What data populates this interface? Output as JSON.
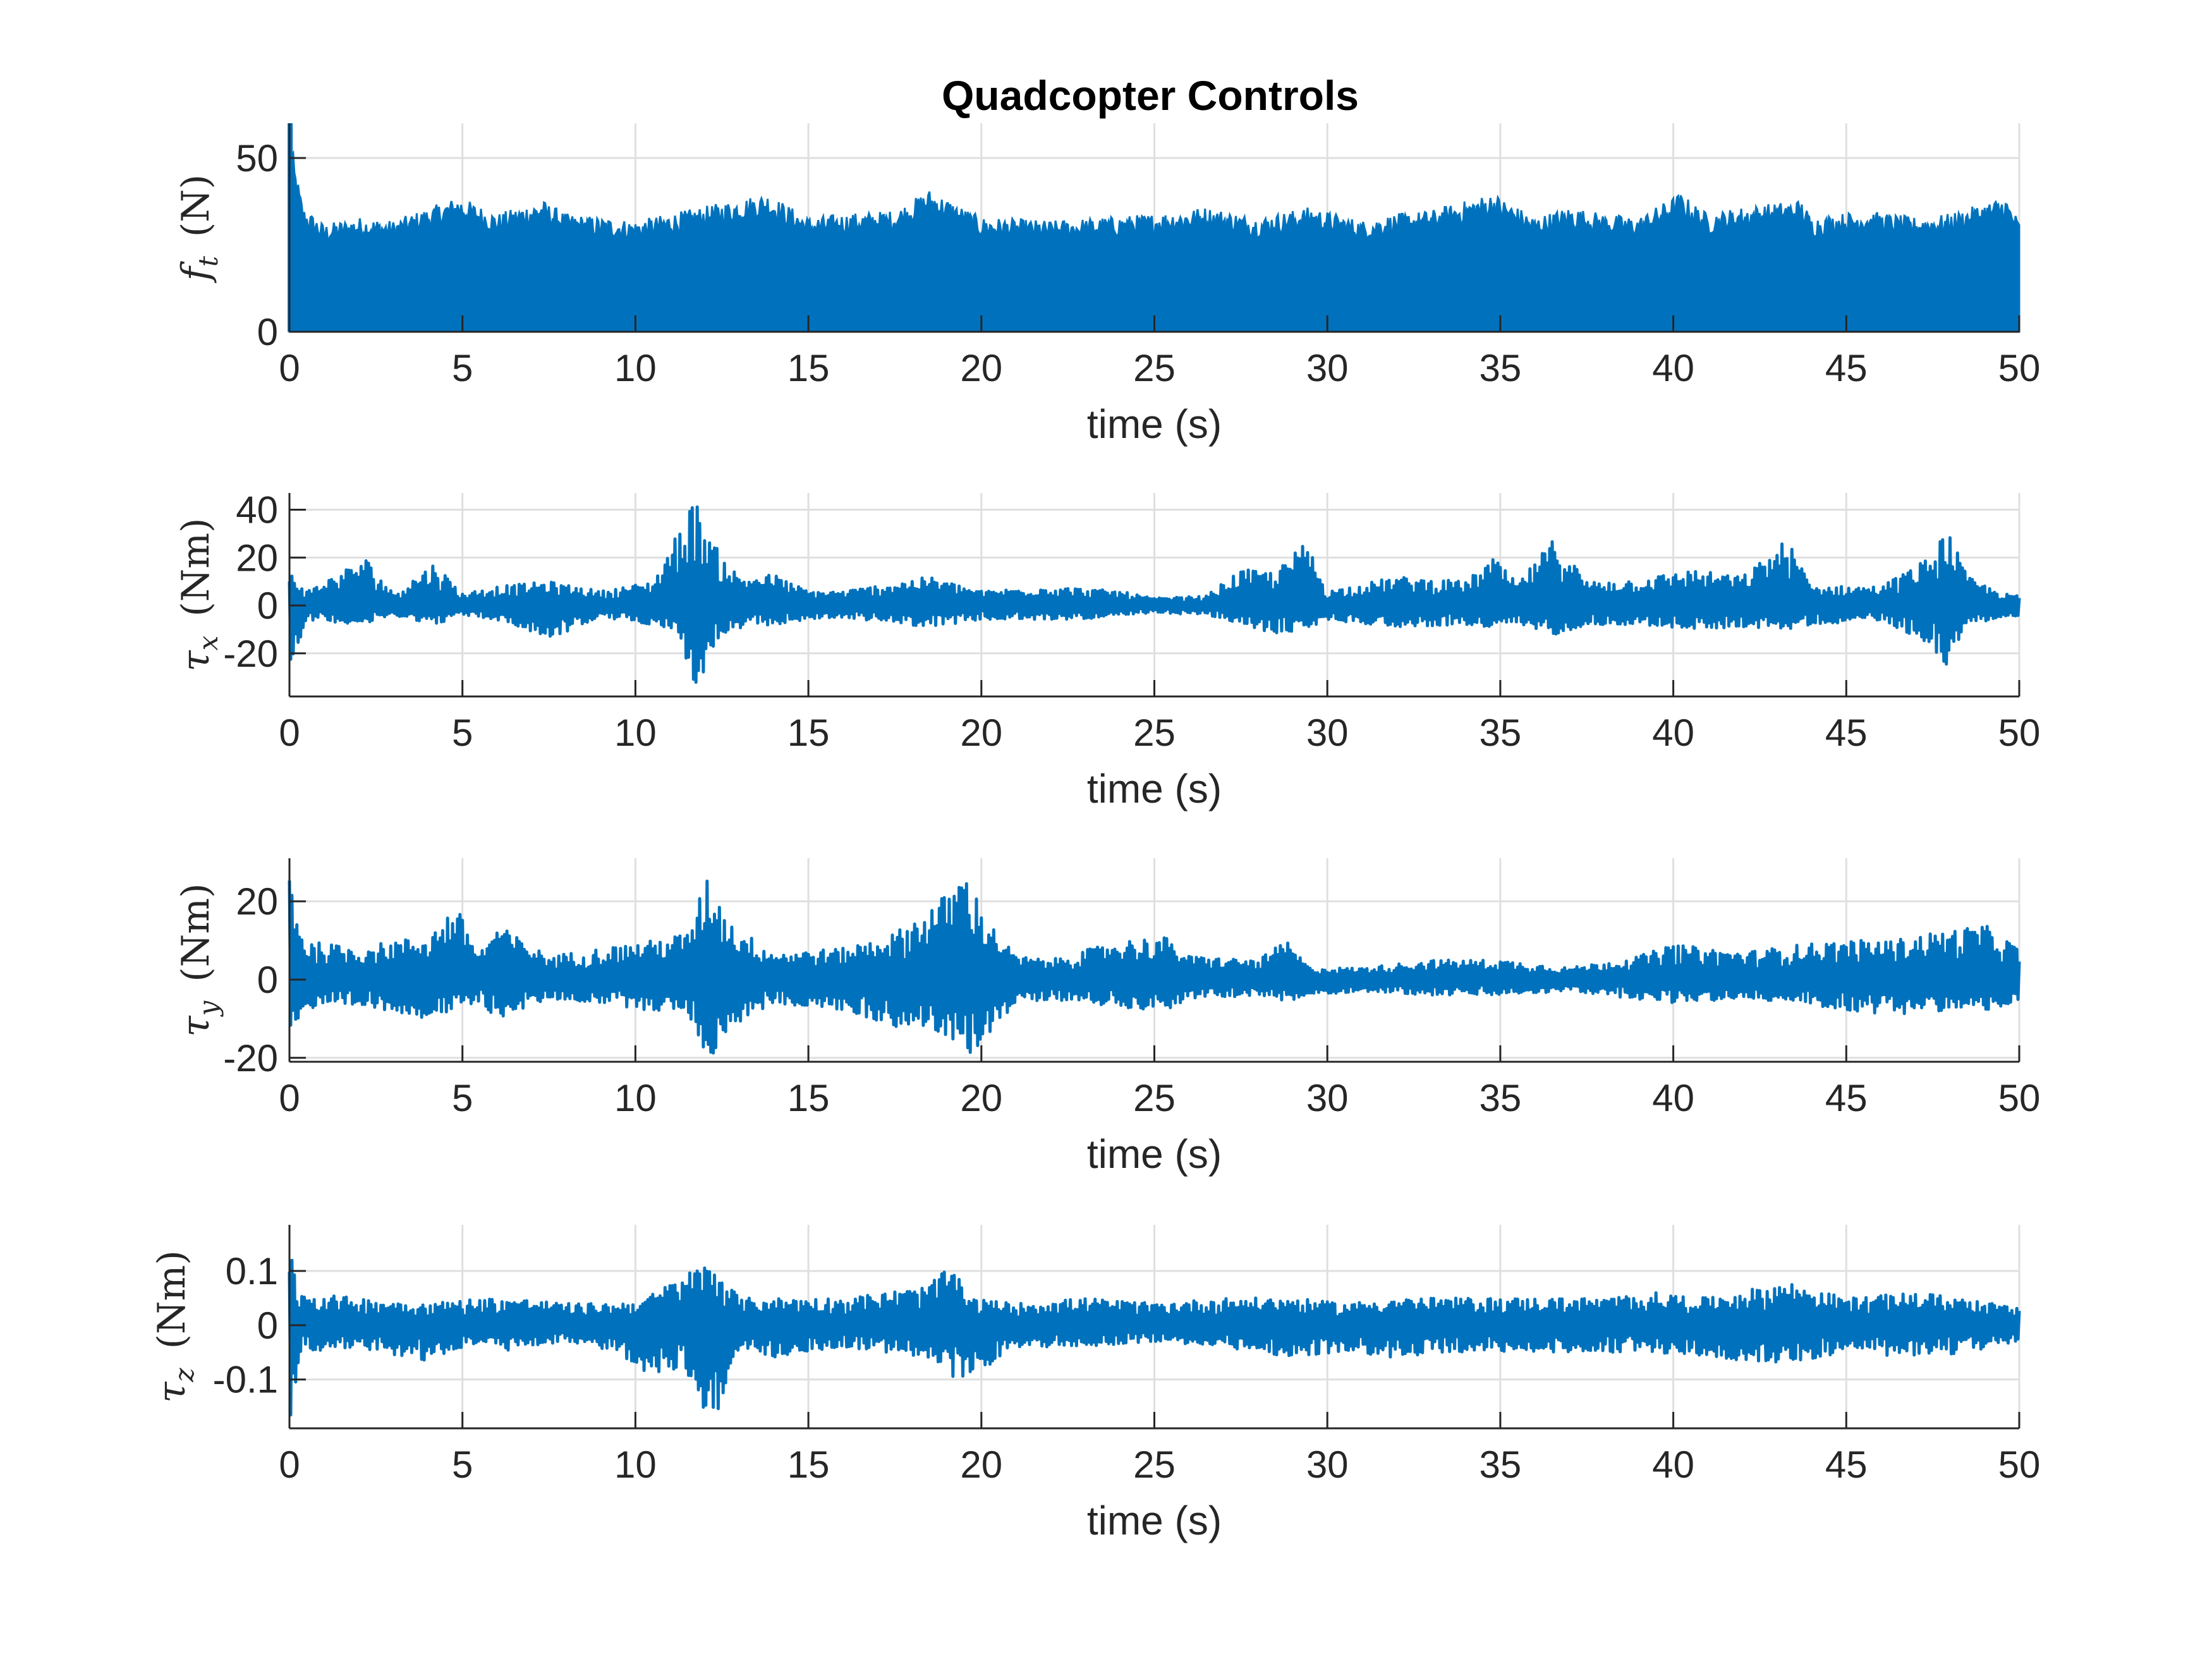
{
  "colors": {
    "series": "#0072BD",
    "grid": "#DFDFDF",
    "axis": "#262626",
    "background": "#FFFFFF"
  },
  "chart_data": [
    {
      "type": "line",
      "title": "Quadcopter Controls",
      "xlabel": "time (s)",
      "ylabel": {
        "symbol": "f",
        "subscript": "t",
        "unit": "(N)"
      },
      "xlim": [
        0,
        50
      ],
      "ylim": [
        0,
        60
      ],
      "xticks": [
        "0",
        "5",
        "10",
        "15",
        "20",
        "25",
        "30",
        "35",
        "40",
        "45",
        "50"
      ],
      "yticks": [
        {
          "value": 0,
          "label": "0"
        },
        {
          "value": 50,
          "label": "50"
        }
      ],
      "grid": true,
      "series": [
        {
          "approx_max": [
            [
              0,
              60
            ],
            [
              0.15,
              48
            ],
            [
              0.4,
              36
            ],
            [
              1,
              31
            ],
            [
              2,
              33
            ],
            [
              3,
              32
            ],
            [
              4.9,
              39
            ],
            [
              6,
              34
            ],
            [
              7.3,
              38
            ],
            [
              8,
              34
            ],
            [
              10,
              32
            ],
            [
              11,
              34
            ],
            [
              13.8,
              40
            ],
            [
              15,
              33
            ],
            [
              16,
              34
            ],
            [
              17.5,
              35
            ],
            [
              18.5,
              41
            ],
            [
              20,
              33
            ],
            [
              22,
              32
            ],
            [
              23.5,
              33
            ],
            [
              25,
              34
            ],
            [
              26.5,
              36
            ],
            [
              28,
              33
            ],
            [
              29.5,
              36
            ],
            [
              31,
              32
            ],
            [
              32,
              34
            ],
            [
              33,
              35
            ],
            [
              34.8,
              40
            ],
            [
              36,
              33
            ],
            [
              37,
              36
            ],
            [
              38,
              34
            ],
            [
              39,
              33
            ],
            [
              40.2,
              40
            ],
            [
              41,
              34
            ],
            [
              42,
              36
            ],
            [
              43.7,
              38
            ],
            [
              44,
              33
            ],
            [
              45.5,
              35
            ],
            [
              47,
              33
            ],
            [
              48,
              34
            ],
            [
              49.6,
              39
            ],
            [
              50,
              32
            ]
          ],
          "approx_min": 0
        }
      ]
    },
    {
      "type": "line",
      "xlabel": "time (s)",
      "ylabel": {
        "symbol": "τ",
        "subscript": "x",
        "unit": "(Nm)"
      },
      "xlim": [
        0,
        50
      ],
      "ylim": [
        -38,
        47
      ],
      "xticks": [
        "0",
        "5",
        "10",
        "15",
        "20",
        "25",
        "30",
        "35",
        "40",
        "45",
        "50"
      ],
      "yticks": [
        {
          "value": -20,
          "label": "-20"
        },
        {
          "value": 0,
          "label": "0"
        },
        {
          "value": 20,
          "label": "20"
        },
        {
          "value": 40,
          "label": "40"
        }
      ],
      "grid": true,
      "series": [
        {
          "envelope": [
            [
              0,
              -26,
              15
            ],
            [
              0.5,
              -6,
              6
            ],
            [
              2.2,
              -8,
              20
            ],
            [
              3,
              -4,
              5
            ],
            [
              4.2,
              -8,
              18
            ],
            [
              5,
              -4,
              5
            ],
            [
              6,
              -6,
              8
            ],
            [
              7.5,
              -14,
              10
            ],
            [
              9,
              -5,
              6
            ],
            [
              10.5,
              -8,
              10
            ],
            [
              11.2,
              -10,
              30
            ],
            [
              11.7,
              -38,
              45
            ],
            [
              12.3,
              -16,
              25
            ],
            [
              13,
              -10,
              12
            ],
            [
              14,
              -8,
              13
            ],
            [
              15,
              -6,
              6
            ],
            [
              16,
              -5,
              6
            ],
            [
              18.5,
              -9,
              12
            ],
            [
              20,
              -6,
              6
            ],
            [
              22,
              -6,
              8
            ],
            [
              24,
              -5,
              6
            ],
            [
              25,
              -3,
              3
            ],
            [
              26.5,
              -4,
              4
            ],
            [
              27.5,
              -8,
              15
            ],
            [
              28.5,
              -12,
              14
            ],
            [
              29.4,
              -10,
              27
            ],
            [
              30,
              -6,
              6
            ],
            [
              32,
              -9,
              12
            ],
            [
              34,
              -8,
              10
            ],
            [
              34.8,
              -10,
              20
            ],
            [
              35.5,
              -8,
              9
            ],
            [
              36.6,
              -12,
              29
            ],
            [
              37.5,
              -8,
              10
            ],
            [
              39,
              -8,
              11
            ],
            [
              40.5,
              -10,
              15
            ],
            [
              42,
              -9,
              12
            ],
            [
              43.3,
              -10,
              28
            ],
            [
              44,
              -8,
              8
            ],
            [
              46,
              -6,
              8
            ],
            [
              47.4,
              -16,
              20
            ],
            [
              47.9,
              -25,
              33
            ],
            [
              48.5,
              -8,
              12
            ],
            [
              49.5,
              -5,
              5
            ],
            [
              50,
              -5,
              4
            ]
          ]
        }
      ]
    },
    {
      "type": "line",
      "xlabel": "time (s)",
      "ylabel": {
        "symbol": "τ",
        "subscript": "y",
        "unit": "(Nm)"
      },
      "xlim": [
        0,
        50
      ],
      "ylim": [
        -21,
        31
      ],
      "xticks": [
        "0",
        "5",
        "10",
        "15",
        "20",
        "25",
        "30",
        "35",
        "40",
        "45",
        "50"
      ],
      "yticks": [
        {
          "value": -20,
          "label": "-20"
        },
        {
          "value": 0,
          "label": "0"
        },
        {
          "value": 20,
          "label": "20"
        }
      ],
      "grid": true,
      "series": [
        {
          "envelope": [
            [
              0,
              -14,
              30
            ],
            [
              0.4,
              -8,
              10
            ],
            [
              2,
              -7,
              8
            ],
            [
              3,
              -8,
              10
            ],
            [
              4,
              -10,
              11
            ],
            [
              4.8,
              -8,
              19
            ],
            [
              5.5,
              -6,
              7
            ],
            [
              6,
              -10,
              14
            ],
            [
              7.5,
              -5,
              6
            ],
            [
              9,
              -6,
              8
            ],
            [
              10.5,
              -8,
              10
            ],
            [
              11.5,
              -8,
              12
            ],
            [
              12.1,
              -21,
              27
            ],
            [
              12.8,
              -12,
              14
            ],
            [
              14,
              -6,
              7
            ],
            [
              16,
              -8,
              8
            ],
            [
              17.5,
              -12,
              12
            ],
            [
              18.3,
              -12,
              17
            ],
            [
              19,
              -15,
              22
            ],
            [
              19.5,
              -21,
              28
            ],
            [
              20.2,
              -14,
              15
            ],
            [
              21,
              -6,
              6
            ],
            [
              22,
              -5,
              5
            ],
            [
              24,
              -7,
              10
            ],
            [
              25.3,
              -8,
              11
            ],
            [
              26,
              -5,
              6
            ],
            [
              28,
              -4,
              5
            ],
            [
              28.8,
              -6,
              10
            ],
            [
              29.5,
              -4,
              3
            ],
            [
              31,
              -3,
              3
            ],
            [
              33,
              -4,
              5
            ],
            [
              35,
              -4,
              5
            ],
            [
              37,
              -3,
              3
            ],
            [
              39,
              -5,
              6
            ],
            [
              40,
              -6,
              9
            ],
            [
              42,
              -5,
              7
            ],
            [
              43.7,
              -6,
              9
            ],
            [
              45,
              -8,
              10
            ],
            [
              46.3,
              -9,
              10
            ],
            [
              47.5,
              -8,
              12
            ],
            [
              49,
              -8,
              14
            ],
            [
              50,
              -6,
              8
            ]
          ]
        }
      ]
    },
    {
      "type": "line",
      "xlabel": "time (s)",
      "ylabel": {
        "symbol": "τ",
        "subscript": "z",
        "unit": "(Nm)"
      },
      "xlim": [
        0,
        50
      ],
      "ylim": [
        -0.19,
        0.185
      ],
      "xticks": [
        "0",
        "5",
        "10",
        "15",
        "20",
        "25",
        "30",
        "35",
        "40",
        "45",
        "50"
      ],
      "yticks": [
        {
          "value": -0.1,
          "label": "-0.1"
        },
        {
          "value": 0,
          "label": "0"
        },
        {
          "value": 0.1,
          "label": "0.1"
        }
      ],
      "grid": true,
      "series": [
        {
          "envelope": [
            [
              0,
              -0.19,
              0.18
            ],
            [
              0.3,
              -0.05,
              0.06
            ],
            [
              2,
              -0.04,
              0.05
            ],
            [
              4,
              -0.07,
              0.04
            ],
            [
              5.5,
              -0.03,
              0.05
            ],
            [
              6.5,
              -0.05,
              0.05
            ],
            [
              8,
              -0.03,
              0.04
            ],
            [
              9.5,
              -0.05,
              0.04
            ],
            [
              10.3,
              -0.09,
              0.05
            ],
            [
              11.3,
              -0.08,
              0.09
            ],
            [
              12.2,
              -0.19,
              0.12
            ],
            [
              13,
              -0.04,
              0.05
            ],
            [
              14,
              -0.06,
              0.05
            ],
            [
              16,
              -0.04,
              0.05
            ],
            [
              18.3,
              -0.06,
              0.07
            ],
            [
              19.2,
              -0.1,
              0.11
            ],
            [
              19.6,
              -0.1,
              0.05
            ],
            [
              21,
              -0.04,
              0.04
            ],
            [
              23,
              -0.04,
              0.05
            ],
            [
              25,
              -0.03,
              0.04
            ],
            [
              27,
              -0.04,
              0.05
            ],
            [
              29,
              -0.06,
              0.05
            ],
            [
              30.5,
              -0.05,
              0.04
            ],
            [
              32,
              -0.06,
              0.05
            ],
            [
              34,
              -0.05,
              0.05
            ],
            [
              36,
              -0.05,
              0.05
            ],
            [
              38,
              -0.05,
              0.05
            ],
            [
              39.5,
              -0.05,
              0.06
            ],
            [
              41,
              -0.06,
              0.05
            ],
            [
              43.3,
              -0.07,
              0.08
            ],
            [
              45,
              -0.05,
              0.05
            ],
            [
              47,
              -0.06,
              0.06
            ],
            [
              48.5,
              -0.05,
              0.05
            ],
            [
              50,
              -0.03,
              0.03
            ]
          ]
        }
      ]
    }
  ]
}
